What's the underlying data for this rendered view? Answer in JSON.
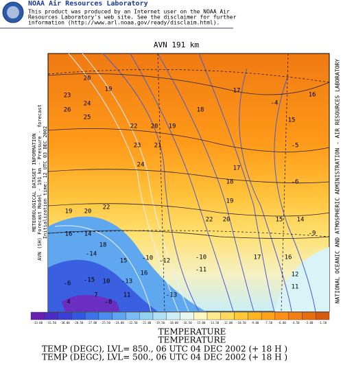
{
  "header": {
    "title": "NOAA Air Resources Laboratory",
    "disclaimer": [
      "This product was produced by an Internet user on the NOAA Air",
      "Resources Laboratory's web site.  See the disclaimer for further",
      "information (http://www.arl.noaa.gov/ready/disclaim.html)."
    ]
  },
  "map": {
    "title": "AVN 191 km",
    "left_caption": [
      "METEOROLOGICAL DATASET INFORMATION",
      "AVN (SH) Forecast Model - 191 km - Pressure - forecast",
      "Initialization time: 12 UTC 03 DEC 2002"
    ],
    "right_caption": "NATIONAL OCEANIC AND ATMOSPHERIC ADMINISTRATION - AIR RESOURCES LABORATORY",
    "contour_labels": [
      20,
      19,
      23,
      24,
      26,
      25,
      22,
      20,
      19,
      18,
      17,
      -4,
      16,
      15,
      23,
      21,
      -5,
      24,
      17,
      18,
      -6,
      19,
      19,
      20,
      22,
      22,
      20,
      15,
      14,
      16,
      14,
      18,
      -9,
      -10,
      -12,
      -10,
      17,
      16,
      -14,
      15,
      16,
      -11,
      12,
      -6,
      -15,
      10,
      -13,
      -13,
      11,
      4,
      7,
      -8,
      11
    ]
  },
  "colorbar": {
    "labels": [
      "-33.00",
      "-31.50",
      "-30.00",
      "-28.50",
      "-27.00",
      "-25.50",
      "-24.00",
      "-22.50",
      "-21.00",
      "-19.50",
      "-18.00",
      "-16.50",
      "-15.00",
      "-13.50",
      "-12.00",
      "-10.50",
      "-9.00",
      "-7.50",
      "-6.00",
      "-4.50",
      "-3.00",
      "-1.50"
    ],
    "colors": [
      "#6a1fb0",
      "#4b2cc4",
      "#3a3fd6",
      "#3158e0",
      "#3a72ea",
      "#4a8cf0",
      "#5ea6f4",
      "#78bdf6",
      "#92d0f6",
      "#b0e0f6",
      "#cdeef6",
      "#e8f8f0",
      "#fff7c0",
      "#ffe98a",
      "#ffda5a",
      "#ffc935",
      "#ffb520",
      "#ffa21a",
      "#ff9015",
      "#f57e12",
      "#e86c10",
      "#d85a0e"
    ]
  },
  "footer": {
    "lines": [
      "TEMPERATURE",
      "TEMPERATURE",
      "TEMP (DEGC),  LVL= 850., 06 UTC 04 DEC 2002 (+ 18 H )",
      "TEMP (DEGC),  LVL= 500., 06 UTC 04 DEC 2002 (+ 18 H )"
    ]
  }
}
